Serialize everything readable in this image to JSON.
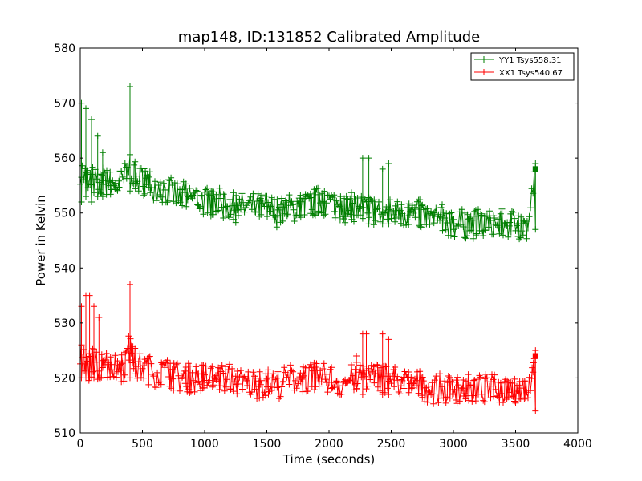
{
  "chart_data": {
    "type": "line",
    "title": "map148, ID:131852 Calibrated Amplitude",
    "xlabel": "Time (seconds)",
    "ylabel": "Power in Kelvin",
    "xlim": [
      0,
      4000
    ],
    "ylim": [
      510,
      580
    ],
    "xticks": [
      "0",
      "500",
      "1000",
      "1500",
      "2000",
      "2500",
      "3000",
      "3500",
      "4000"
    ],
    "yticks": [
      "510",
      "520",
      "530",
      "540",
      "550",
      "560",
      "570",
      "580"
    ],
    "grid": false,
    "legend_position": "top-right",
    "marker": "+",
    "series": [
      {
        "name": "YY1 Tsys558.31",
        "color": "#007f00",
        "x": [
          0,
          30,
          60,
          100,
          150,
          200,
          250,
          300,
          350,
          400,
          450,
          500,
          600,
          700,
          800,
          900,
          1000,
          1100,
          1200,
          1300,
          1400,
          1500,
          1600,
          1700,
          1800,
          1900,
          2000,
          2100,
          2200,
          2300,
          2400,
          2500,
          2600,
          2700,
          2800,
          2900,
          3000,
          3100,
          3200,
          3300,
          3400,
          3500,
          3600,
          3660
        ],
        "y": [
          558,
          557,
          556,
          556,
          555,
          556,
          555,
          555,
          556,
          559,
          556,
          556,
          555,
          554,
          553,
          553,
          552,
          552,
          551,
          551,
          551,
          551,
          550,
          551,
          551,
          552,
          552,
          551,
          551,
          551,
          550,
          550,
          550,
          550,
          549,
          549,
          548,
          548,
          548,
          548,
          548,
          548,
          547,
          558
        ],
        "spikes": [
          {
            "x": 10,
            "low": 552,
            "high": 570
          },
          {
            "x": 45,
            "low": 553,
            "high": 569
          },
          {
            "x": 90,
            "low": 552,
            "high": 567
          },
          {
            "x": 140,
            "low": 553,
            "high": 564
          },
          {
            "x": 180,
            "low": 553,
            "high": 561
          },
          {
            "x": 400,
            "low": 554,
            "high": 573
          },
          {
            "x": 2270,
            "low": 549,
            "high": 560
          },
          {
            "x": 2320,
            "low": 548,
            "high": 560
          },
          {
            "x": 2430,
            "low": 548,
            "high": 558
          },
          {
            "x": 2480,
            "low": 548,
            "high": 559
          },
          {
            "x": 3660,
            "low": 547,
            "high": 559
          }
        ]
      },
      {
        "name": "XX1 Tsys540.67",
        "color": "#ff0000",
        "x": [
          0,
          30,
          60,
          100,
          150,
          200,
          250,
          300,
          350,
          400,
          450,
          500,
          600,
          700,
          800,
          900,
          1000,
          1100,
          1200,
          1300,
          1400,
          1500,
          1600,
          1700,
          1800,
          1900,
          2000,
          2100,
          2200,
          2300,
          2400,
          2500,
          2600,
          2700,
          2800,
          2900,
          3000,
          3100,
          3200,
          3300,
          3400,
          3500,
          3600,
          3660
        ],
        "y": [
          524,
          523,
          522,
          523,
          522,
          523,
          522,
          522,
          522,
          526,
          522,
          522,
          521,
          521,
          520,
          520,
          520,
          520,
          520,
          519,
          519,
          519,
          519,
          520,
          520,
          520,
          520,
          519,
          520,
          521,
          520,
          520,
          519,
          519,
          518,
          518,
          518,
          518,
          518,
          518,
          518,
          518,
          518,
          524
        ],
        "spikes": [
          {
            "x": 10,
            "low": 520,
            "high": 533
          },
          {
            "x": 45,
            "low": 520,
            "high": 535
          },
          {
            "x": 75,
            "low": 520,
            "high": 535
          },
          {
            "x": 110,
            "low": 520,
            "high": 533
          },
          {
            "x": 150,
            "low": 520,
            "high": 531
          },
          {
            "x": 400,
            "low": 520,
            "high": 537
          },
          {
            "x": 2220,
            "low": 518,
            "high": 524
          },
          {
            "x": 2270,
            "low": 517,
            "high": 528
          },
          {
            "x": 2300,
            "low": 518,
            "high": 528
          },
          {
            "x": 2430,
            "low": 517,
            "high": 528
          },
          {
            "x": 2480,
            "low": 517,
            "high": 527
          },
          {
            "x": 3660,
            "low": 514,
            "high": 525
          }
        ]
      }
    ]
  }
}
